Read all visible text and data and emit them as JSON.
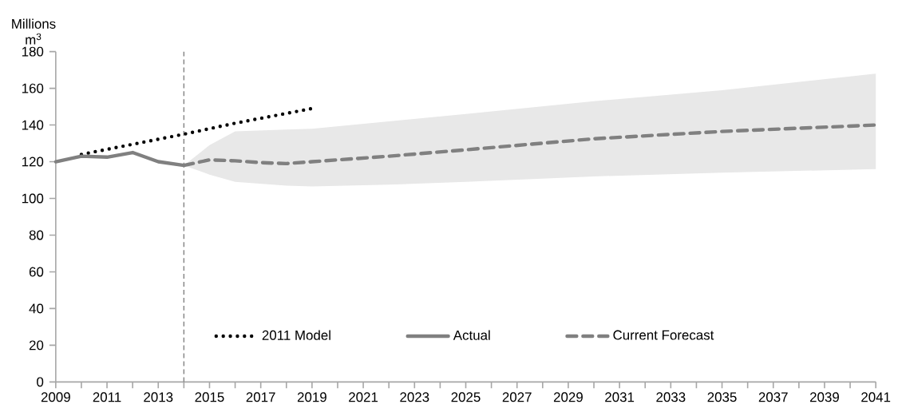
{
  "chart_data": {
    "type": "line",
    "ylabel": "Millions m$^{3}$",
    "xlim": [
      2009,
      2041
    ],
    "xticks": [
      2009,
      2011,
      2013,
      2015,
      2017,
      2019,
      2021,
      2023,
      2025,
      2027,
      2029,
      2031,
      2033,
      2035,
      2037,
      2039,
      2041
    ],
    "ylim": [
      0,
      180
    ],
    "yticks": [
      0,
      20,
      40,
      60,
      80,
      100,
      120,
      140,
      160,
      180
    ],
    "grid": false,
    "legend": "bottom",
    "marker": "none",
    "ref_lines": [
      {
        "axis": "x",
        "value": 2014,
        "color": "#808080",
        "line_style": "dashed"
      }
    ],
    "series": [
      {
        "name": "2011 Model",
        "color": "#000000",
        "line_style": "dotted",
        "x": [
          2010,
          2012,
          2014,
          2016,
          2019
        ],
        "values": [
          124,
          129.5,
          135,
          141,
          149
        ]
      },
      {
        "name": "Actual",
        "color": "#808080",
        "line_style": "solid",
        "x": [
          2009,
          2010,
          2011,
          2012,
          2013,
          2014
        ],
        "values": [
          120,
          123,
          122.5,
          125,
          120,
          118
        ]
      },
      {
        "name": "Current Forecast",
        "color": "#808080",
        "line_style": "dashed",
        "x": [
          2014,
          2015,
          2016,
          2017,
          2018,
          2019,
          2022,
          2025,
          2030,
          2035,
          2041
        ],
        "values": [
          118,
          121,
          120.5,
          119.5,
          119,
          120,
          123,
          126.5,
          132.5,
          136.5,
          140
        ],
        "lower": [
          118,
          113,
          109,
          108,
          107,
          106.5,
          107.5,
          109,
          112,
          114,
          116
        ],
        "upper": [
          118,
          129,
          136.5,
          137,
          137.5,
          138,
          142,
          146,
          153,
          159,
          168
        ]
      }
    ]
  }
}
